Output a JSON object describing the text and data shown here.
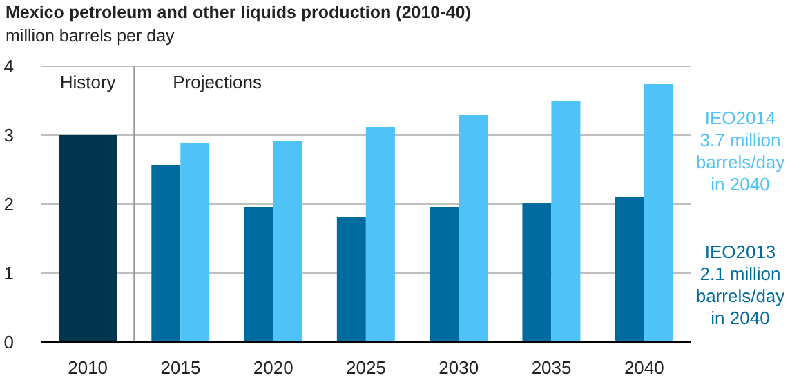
{
  "chart_data": {
    "type": "bar",
    "title": "Mexico petroleum and other liquids production (2010-40)",
    "subtitle": "million barrels per day",
    "x": [
      2010,
      2015,
      2020,
      2025,
      2030,
      2035,
      2040
    ],
    "xlim": [
      2007.5,
      2042.5
    ],
    "xticks": [
      2010,
      2015,
      2020,
      2025,
      2030,
      2035,
      2040
    ],
    "ref_lines": [
      {
        "axis": "x",
        "value": 2012.5,
        "color": "#999999"
      }
    ],
    "series": [
      {
        "color": "#00344f",
        "values": [
          3.0,
          null,
          null,
          null,
          null,
          null,
          null
        ]
      },
      {
        "name": "IEO2013",
        "color": "#006b9f",
        "values": [
          null,
          2.57,
          1.96,
          1.82,
          1.96,
          2.02,
          2.1
        ]
      },
      {
        "name": "IEO2014",
        "color": "#4fc3f7",
        "values": [
          null,
          2.88,
          2.92,
          3.12,
          3.29,
          3.49,
          3.74
        ]
      }
    ],
    "annotations": [
      "History",
      "Projections",
      "3.7 million barrels/day in 2040",
      "2.1 million barrels/day in 2040"
    ],
    "ylim": [
      0,
      4
    ],
    "yticks": [
      0,
      1,
      2,
      3,
      4
    ],
    "grid": "y",
    "legend": false
  }
}
